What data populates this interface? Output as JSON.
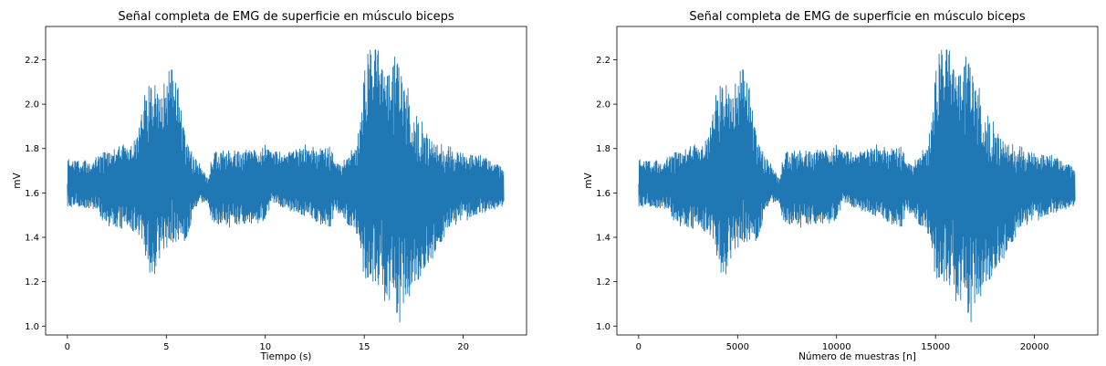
{
  "chart_data": [
    {
      "type": "line",
      "title": "Señal completa de EMG de superficie en músculo biceps",
      "xlabel": "Tiempo (s)",
      "ylabel": "mV",
      "xlim": [
        -1.1,
        23.2
      ],
      "ylim": [
        0.96,
        2.35
      ],
      "xticks": [
        0,
        5,
        10,
        15,
        20
      ],
      "xtick_labels": [
        "0",
        "5",
        "10",
        "15",
        "20"
      ],
      "yticks": [
        1.0,
        1.2,
        1.4,
        1.6,
        1.8,
        2.0,
        2.2
      ],
      "ytick_labels": [
        "1.0",
        "1.2",
        "1.4",
        "1.6",
        "1.8",
        "2.0",
        "2.2"
      ],
      "grid": false,
      "color": "#1f77b4",
      "x_end": 22.05,
      "envelope": {
        "x": [
          0,
          1.5,
          1.8,
          3.5,
          3.9,
          4.3,
          4.7,
          5.4,
          6.0,
          6.6,
          7.1,
          7.4,
          10.0,
          10.3,
          13.3,
          13.6,
          14.6,
          15.1,
          15.6,
          16.2,
          16.7,
          17.4,
          18.5,
          19.5,
          21.0,
          22.05
        ],
        "y_max": [
          1.75,
          1.76,
          1.8,
          1.86,
          2.05,
          2.18,
          2.05,
          2.22,
          1.85,
          1.74,
          1.68,
          1.8,
          1.82,
          1.8,
          1.83,
          1.74,
          1.82,
          2.27,
          2.32,
          2.18,
          2.25,
          2.02,
          1.85,
          1.8,
          1.78,
          1.72
        ],
        "y_min": [
          1.53,
          1.52,
          1.45,
          1.4,
          1.3,
          1.18,
          1.28,
          1.32,
          1.37,
          1.55,
          1.55,
          1.44,
          1.45,
          1.54,
          1.43,
          1.51,
          1.4,
          1.12,
          1.15,
          1.08,
          1.0,
          1.12,
          1.3,
          1.45,
          1.5,
          1.53
        ]
      }
    },
    {
      "type": "line",
      "title": "Señal completa de EMG de superficie en músculo biceps",
      "xlabel": "Número de muestras [n]",
      "ylabel": "mV",
      "xlim": [
        -1100,
        23200
      ],
      "ylim": [
        0.96,
        2.35
      ],
      "xticks": [
        0,
        5000,
        10000,
        15000,
        20000
      ],
      "xtick_labels": [
        "0",
        "5000",
        "10000",
        "15000",
        "20000"
      ],
      "yticks": [
        1.0,
        1.2,
        1.4,
        1.6,
        1.8,
        2.0,
        2.2
      ],
      "ytick_labels": [
        "1.0",
        "1.2",
        "1.4",
        "1.6",
        "1.8",
        "2.0",
        "2.2"
      ],
      "grid": false,
      "color": "#1f77b4",
      "x_end": 22050,
      "envelope": {
        "x": [
          0,
          1500,
          1800,
          3500,
          3900,
          4300,
          4700,
          5400,
          6000,
          6600,
          7100,
          7400,
          10000,
          10300,
          13300,
          13600,
          14600,
          15100,
          15600,
          16200,
          16700,
          17400,
          18500,
          19500,
          21000,
          22050
        ],
        "y_max": [
          1.75,
          1.76,
          1.8,
          1.86,
          2.05,
          2.18,
          2.05,
          2.22,
          1.85,
          1.74,
          1.68,
          1.8,
          1.82,
          1.8,
          1.83,
          1.74,
          1.82,
          2.27,
          2.32,
          2.18,
          2.25,
          2.02,
          1.85,
          1.8,
          1.78,
          1.72
        ],
        "y_min": [
          1.53,
          1.52,
          1.45,
          1.4,
          1.3,
          1.18,
          1.28,
          1.32,
          1.37,
          1.55,
          1.55,
          1.44,
          1.45,
          1.54,
          1.43,
          1.51,
          1.4,
          1.12,
          1.15,
          1.08,
          1.0,
          1.12,
          1.3,
          1.45,
          1.5,
          1.53
        ]
      }
    }
  ]
}
